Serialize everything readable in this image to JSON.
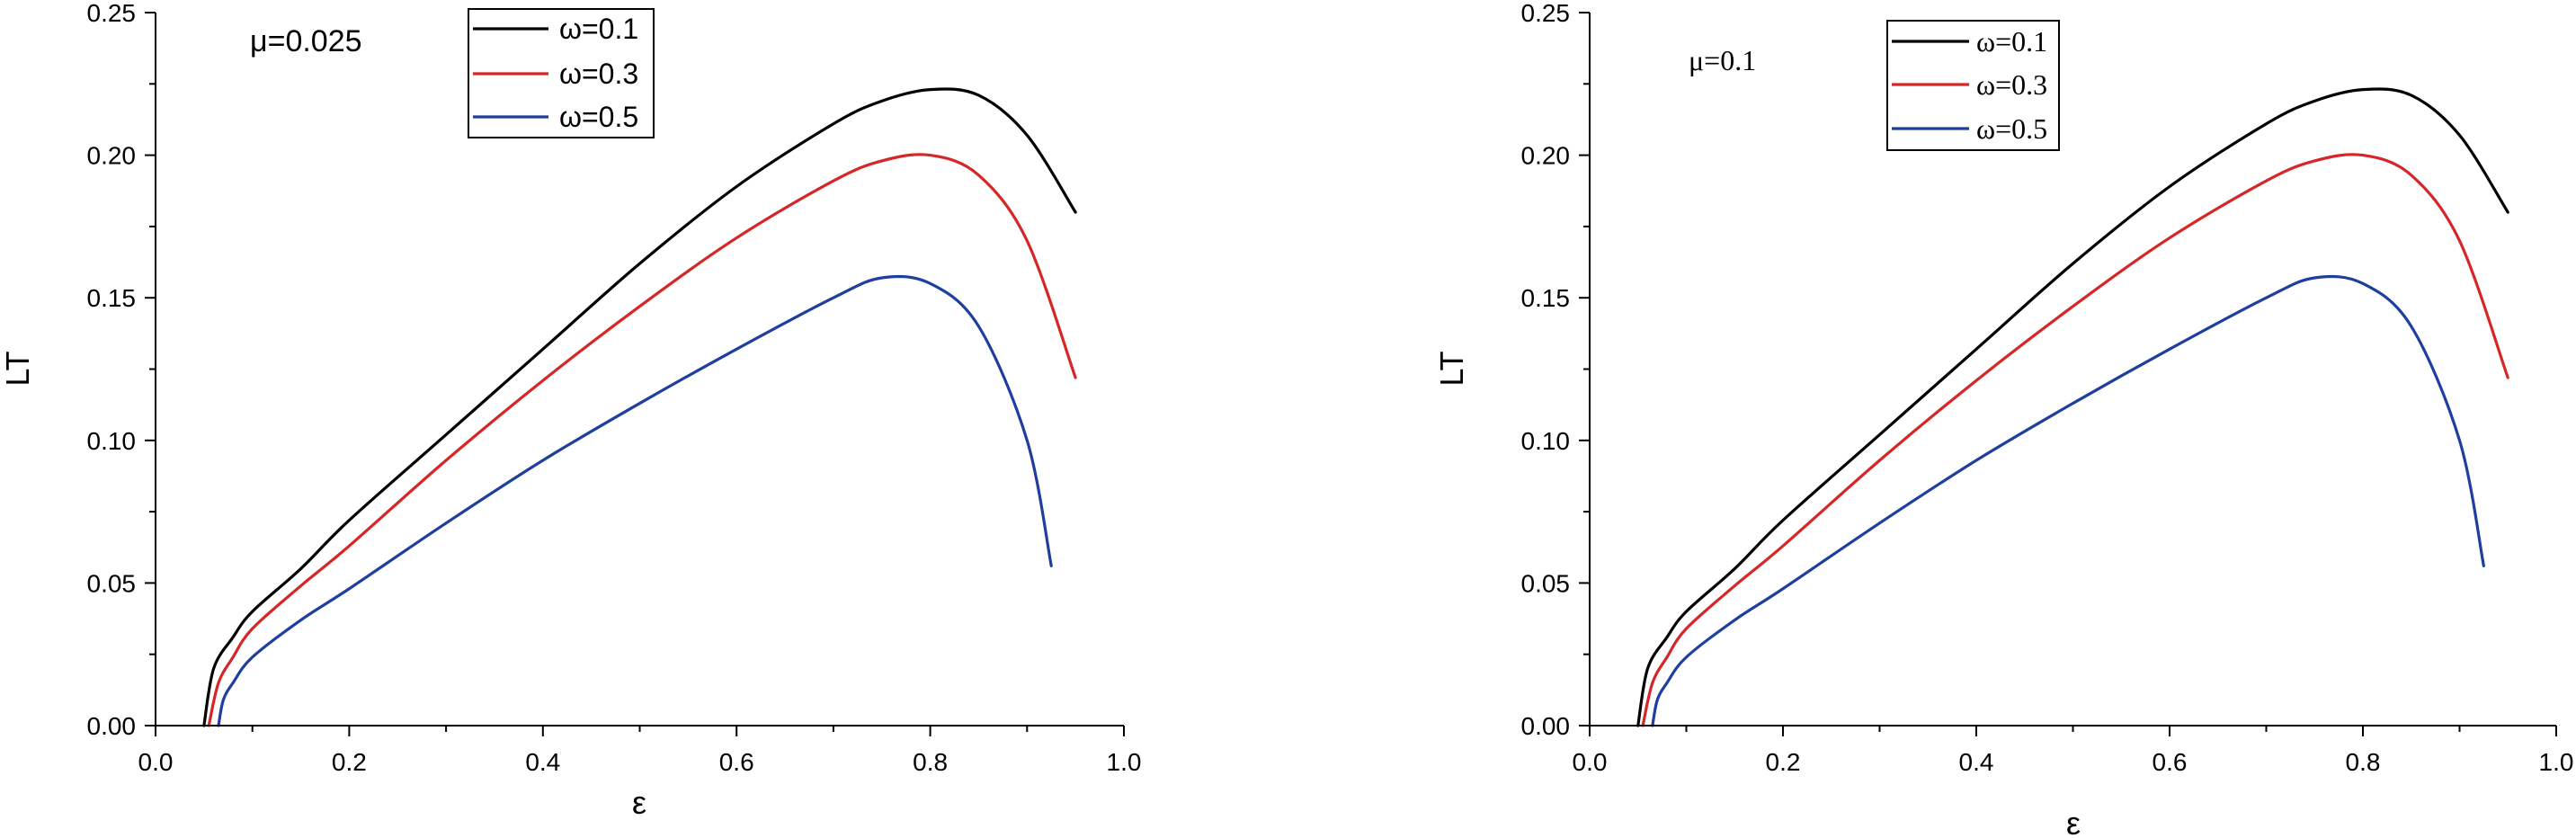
{
  "chart_data": [
    {
      "type": "line",
      "annotation": "μ=0.025",
      "xlabel": "ε",
      "ylabel": "LT",
      "xlim": [
        0.0,
        1.0
      ],
      "ylim": [
        0.0,
        0.25
      ],
      "xticks": [
        "0.0",
        "0.2",
        "0.4",
        "0.6",
        "0.8",
        "1.0"
      ],
      "yticks": [
        "0.00",
        "0.05",
        "0.10",
        "0.15",
        "0.20",
        "0.25"
      ],
      "grid": false,
      "legend_position": "top-center",
      "series": [
        {
          "name": "ω=0.1",
          "color": "#000000",
          "x": [
            0.05,
            0.06,
            0.08,
            0.1,
            0.15,
            0.2,
            0.3,
            0.4,
            0.5,
            0.6,
            0.7,
            0.75,
            0.8,
            0.85,
            0.9,
            0.95
          ],
          "y": [
            0.0,
            0.02,
            0.031,
            0.04,
            0.055,
            0.072,
            0.102,
            0.132,
            0.162,
            0.189,
            0.211,
            0.219,
            0.223,
            0.221,
            0.207,
            0.18
          ]
        },
        {
          "name": "ω=0.3",
          "color": "#d62728",
          "x": [
            0.055,
            0.065,
            0.08,
            0.1,
            0.15,
            0.2,
            0.3,
            0.4,
            0.5,
            0.6,
            0.7,
            0.75,
            0.8,
            0.85,
            0.9,
            0.95
          ],
          "y": [
            0.0,
            0.015,
            0.024,
            0.034,
            0.049,
            0.063,
            0.093,
            0.121,
            0.147,
            0.171,
            0.191,
            0.198,
            0.2,
            0.193,
            0.17,
            0.122
          ]
        },
        {
          "name": "ω=0.5",
          "color": "#1f3f9f",
          "x": [
            0.065,
            0.07,
            0.08,
            0.1,
            0.15,
            0.2,
            0.3,
            0.4,
            0.5,
            0.6,
            0.7,
            0.75,
            0.8,
            0.85,
            0.9,
            0.925
          ],
          "y": [
            0.0,
            0.009,
            0.015,
            0.024,
            0.037,
            0.048,
            0.071,
            0.093,
            0.113,
            0.132,
            0.15,
            0.157,
            0.155,
            0.14,
            0.1,
            0.056
          ]
        }
      ]
    },
    {
      "type": "line",
      "annotation": "μ=0.1",
      "xlabel": "ε",
      "ylabel": "LT",
      "xlim": [
        0.0,
        1.0
      ],
      "ylim": [
        0.0,
        0.25
      ],
      "xticks": [
        "0.0",
        "0.2",
        "0.4",
        "0.6",
        "0.8",
        "1.0"
      ],
      "yticks": [
        "0.00",
        "0.05",
        "0.10",
        "0.15",
        "0.20",
        "0.25"
      ],
      "grid": false,
      "legend_position": "top-left",
      "series": [
        {
          "name": "ω=0.1",
          "color": "#000000",
          "x": [
            0.05,
            0.06,
            0.08,
            0.1,
            0.15,
            0.2,
            0.3,
            0.4,
            0.5,
            0.6,
            0.7,
            0.75,
            0.8,
            0.85,
            0.9,
            0.95
          ],
          "y": [
            0.0,
            0.02,
            0.031,
            0.04,
            0.055,
            0.072,
            0.102,
            0.132,
            0.162,
            0.189,
            0.211,
            0.219,
            0.223,
            0.221,
            0.207,
            0.18
          ]
        },
        {
          "name": "ω=0.3",
          "color": "#d62728",
          "x": [
            0.055,
            0.065,
            0.08,
            0.1,
            0.15,
            0.2,
            0.3,
            0.4,
            0.5,
            0.6,
            0.7,
            0.75,
            0.8,
            0.85,
            0.9,
            0.95
          ],
          "y": [
            0.0,
            0.015,
            0.024,
            0.034,
            0.049,
            0.063,
            0.093,
            0.121,
            0.147,
            0.171,
            0.191,
            0.198,
            0.2,
            0.193,
            0.17,
            0.122
          ]
        },
        {
          "name": "ω=0.5",
          "color": "#1f3f9f",
          "x": [
            0.065,
            0.07,
            0.08,
            0.1,
            0.15,
            0.2,
            0.3,
            0.4,
            0.5,
            0.6,
            0.7,
            0.75,
            0.8,
            0.85,
            0.9,
            0.925
          ],
          "y": [
            0.0,
            0.009,
            0.015,
            0.024,
            0.037,
            0.048,
            0.071,
            0.093,
            0.113,
            0.132,
            0.15,
            0.157,
            0.155,
            0.14,
            0.1,
            0.056
          ]
        }
      ]
    }
  ]
}
